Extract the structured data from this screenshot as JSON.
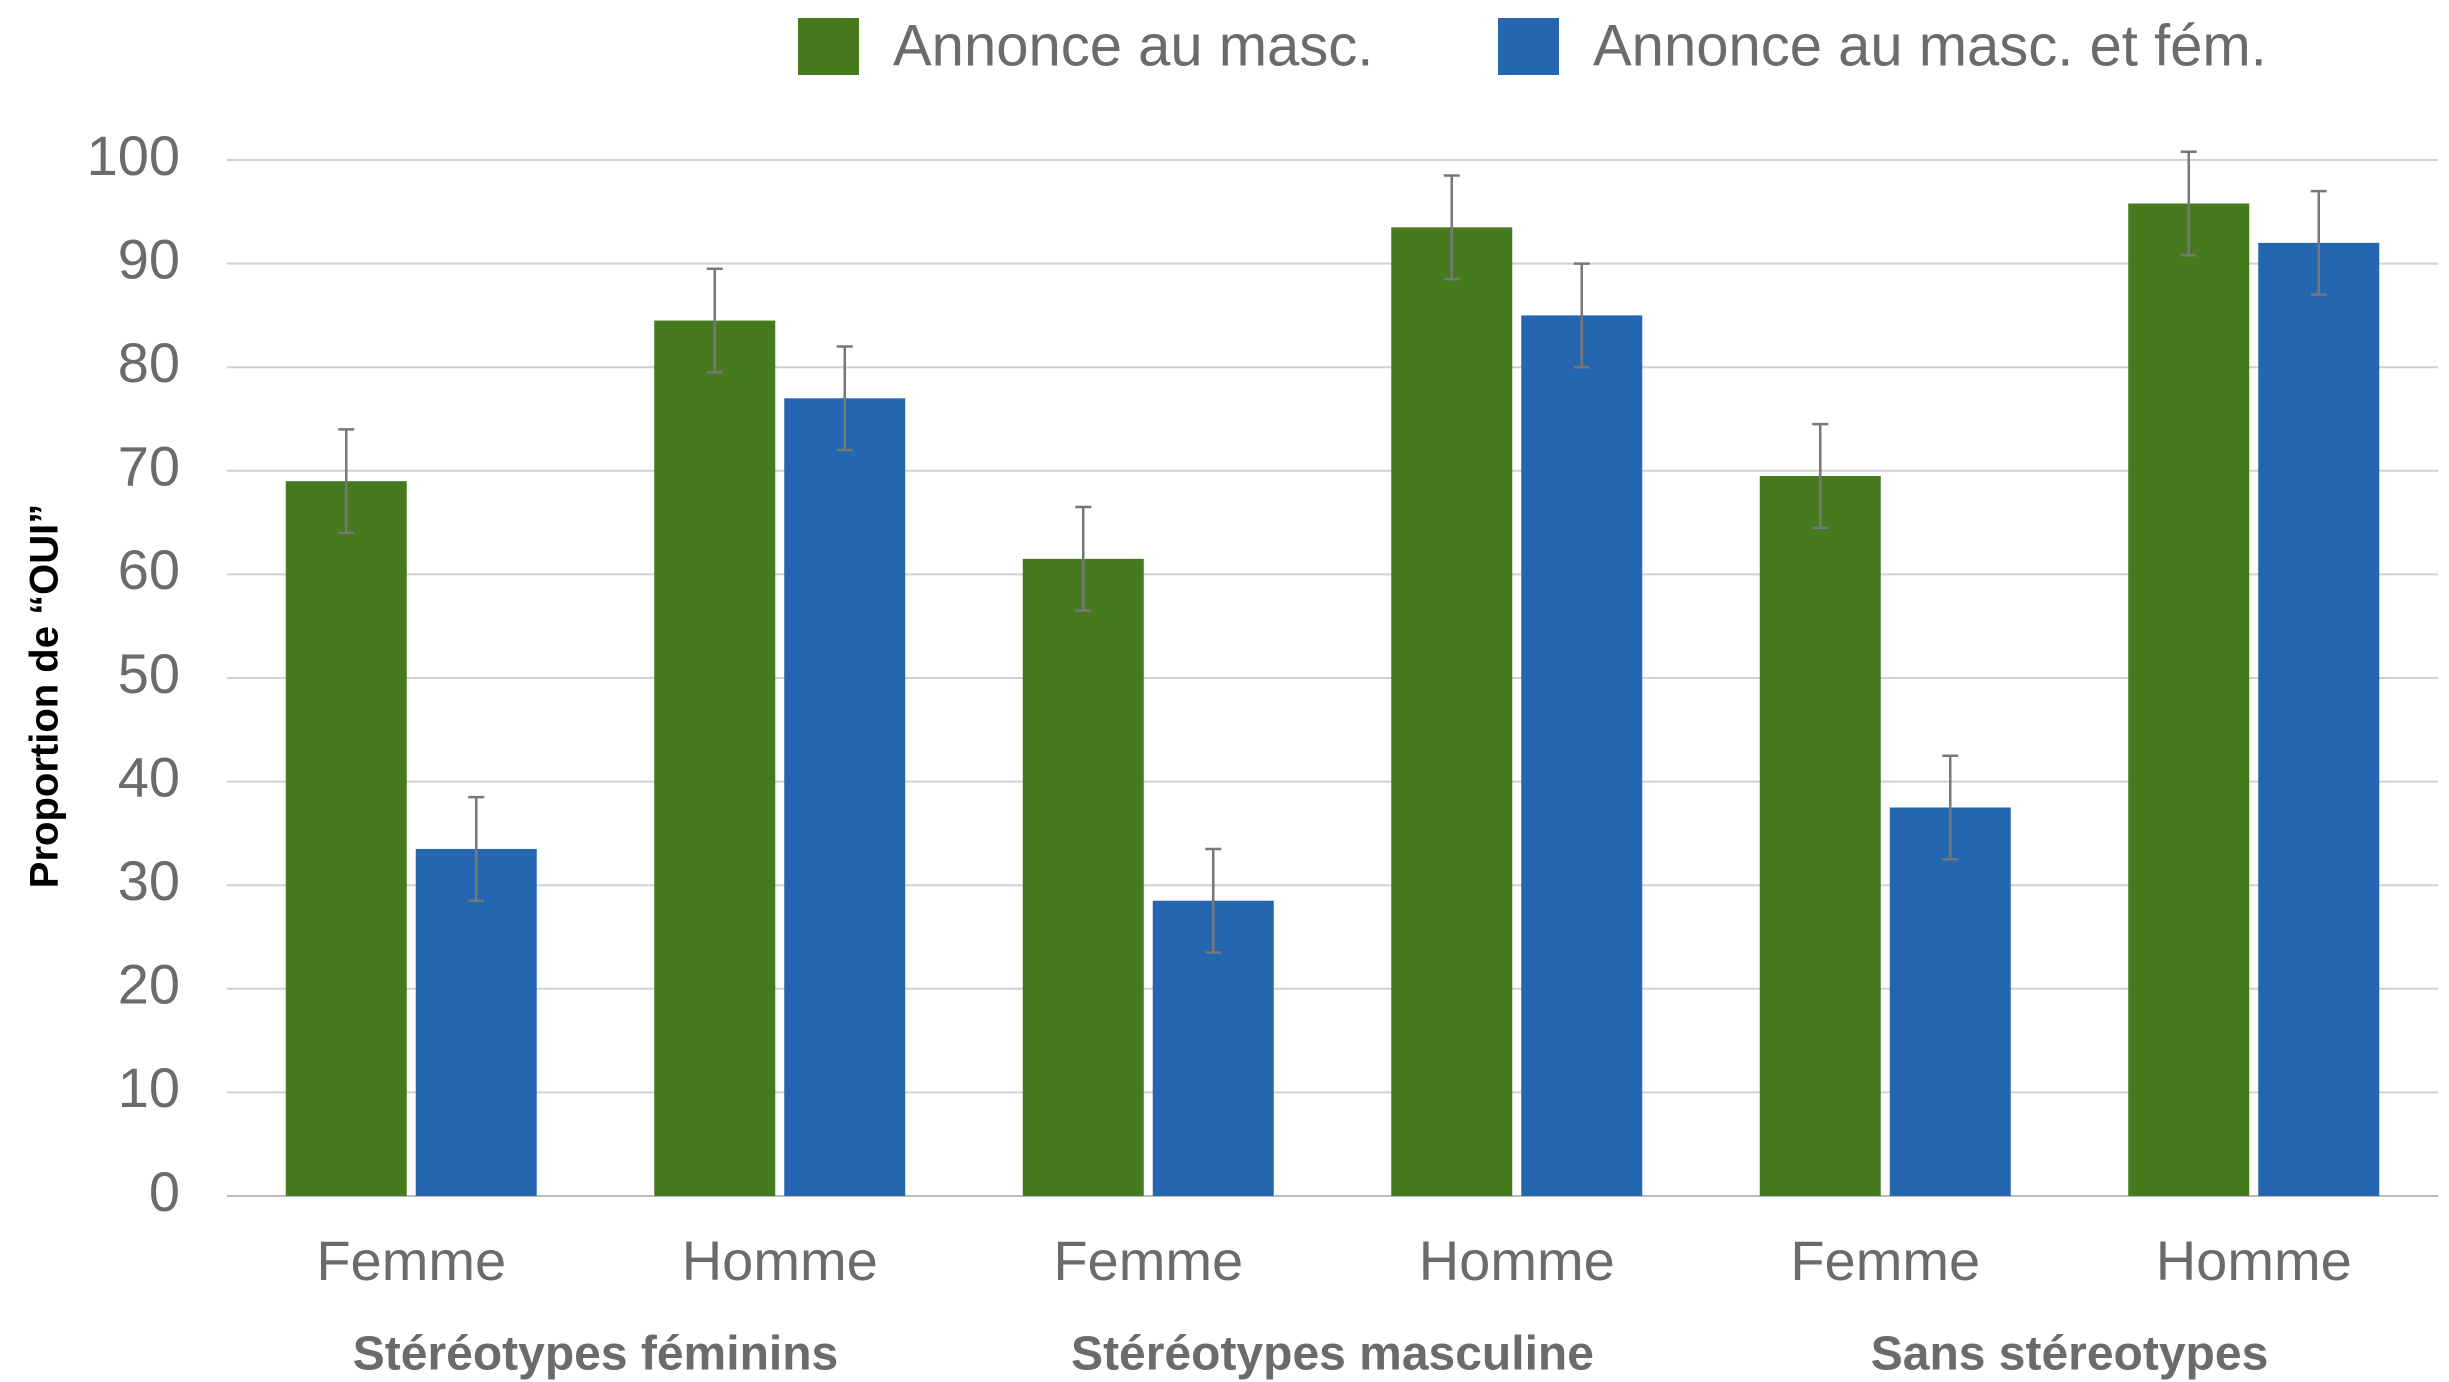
{
  "chart_data": {
    "type": "bar",
    "categories": [
      "Femme",
      "Homme",
      "Femme",
      "Homme",
      "Femme",
      "Homme"
    ],
    "groups": [
      "Stéréotypes féminins",
      "Stéréotypes masculine",
      "Sans stéreotypes"
    ],
    "y_label": "Proportion de “OUI”",
    "series": [
      {
        "name": "Annonce au masc.",
        "color": "#467a1e",
        "values": [
          69,
          84.5,
          61.5,
          93.5,
          69.5,
          95.8
        ],
        "errors": [
          5,
          5,
          5,
          5,
          5,
          5
        ]
      },
      {
        "name": "Annonce au masc. et fém.",
        "color": "#2566b0",
        "values": [
          33.5,
          77,
          28.5,
          85,
          37.5,
          92
        ],
        "errors": [
          5,
          5,
          5,
          5,
          5,
          5
        ]
      }
    ],
    "ylim": [
      0,
      100
    ],
    "yticks": [
      0,
      10,
      20,
      30,
      40,
      50,
      60,
      70,
      80,
      90,
      100
    ],
    "grid": true,
    "legend": "top"
  }
}
